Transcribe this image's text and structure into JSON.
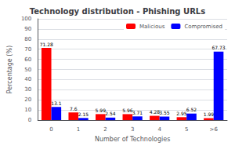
{
  "chart_data": {
    "type": "bar",
    "title": "Technology distribution - Phishing URLs",
    "xlabel": "Number of Technologies",
    "ylabel": "Percentage (%)",
    "categories": [
      "0",
      "1",
      "2",
      "3",
      "4",
      "5",
      ">6"
    ],
    "series": [
      {
        "name": "Malicious",
        "color": "#ff0000",
        "values": [
          71.28,
          7.6,
          5.99,
          5.96,
          4.28,
          2.95,
          1.99
        ]
      },
      {
        "name": "Compromised",
        "color": "#0000ff",
        "values": [
          13.1,
          2.15,
          2.54,
          3.71,
          3.55,
          6.52,
          67.73
        ]
      }
    ],
    "ylim": [
      0,
      100
    ],
    "yticks": [
      0,
      10,
      20,
      30,
      40,
      50,
      60,
      70,
      80,
      90,
      100
    ],
    "grid": true,
    "legend": "upper right",
    "data_labels": true
  }
}
